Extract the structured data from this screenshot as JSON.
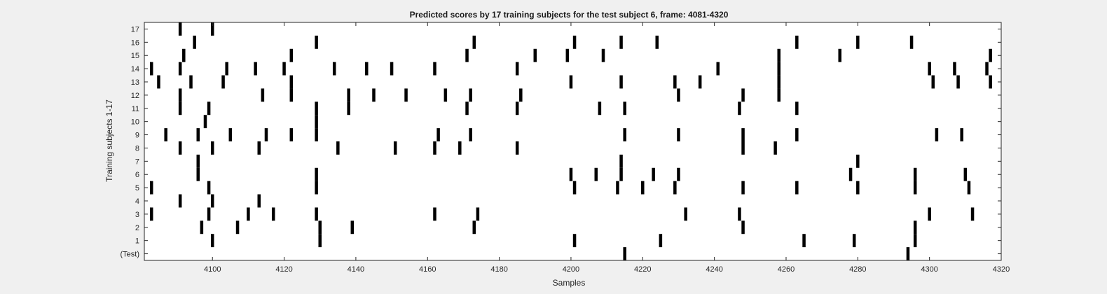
{
  "chart_data": {
    "type": "scatter",
    "title": "Predicted scores by 17 training subjects for the test subject 6, frame: 4081-4320",
    "xlabel": "Samples",
    "ylabel": "Training subjects 1-17",
    "xlim": [
      4081,
      4320
    ],
    "ylim": [
      -0.5,
      17.5
    ],
    "grid": false,
    "legend": "none",
    "x_ticks": [
      4100,
      4120,
      4140,
      4160,
      4180,
      4200,
      4220,
      4240,
      4260,
      4280,
      4300,
      4320
    ],
    "y_ticks": [
      {
        "value": 17,
        "label": "17"
      },
      {
        "value": 16,
        "label": "16"
      },
      {
        "value": 15,
        "label": "15"
      },
      {
        "value": 14,
        "label": "14"
      },
      {
        "value": 13,
        "label": "13"
      },
      {
        "value": 12,
        "label": "12"
      },
      {
        "value": 11,
        "label": "11"
      },
      {
        "value": 10,
        "label": "10"
      },
      {
        "value": 9,
        "label": "9"
      },
      {
        "value": 8,
        "label": "8"
      },
      {
        "value": 7,
        "label": "7"
      },
      {
        "value": 6,
        "label": "6"
      },
      {
        "value": 5,
        "label": "5"
      },
      {
        "value": 4,
        "label": "4"
      },
      {
        "value": 3,
        "label": "3"
      },
      {
        "value": 2,
        "label": "2"
      },
      {
        "value": 1,
        "label": "1"
      },
      {
        "value": 0,
        "label": "(Test)"
      }
    ],
    "rows": [
      {
        "row": 17,
        "x": [
          4091,
          4100
        ]
      },
      {
        "row": 16,
        "x": [
          4095,
          4129,
          4173,
          4201,
          4214,
          4224,
          4263,
          4280,
          4295
        ]
      },
      {
        "row": 15,
        "x": [
          4092,
          4122,
          4171,
          4190,
          4199,
          4209,
          4258,
          4275,
          4317
        ]
      },
      {
        "row": 14,
        "x": [
          4083,
          4091,
          4104,
          4112,
          4120,
          4134,
          4143,
          4150,
          4162,
          4185,
          4241,
          4258,
          4300,
          4307,
          4316
        ]
      },
      {
        "row": 13,
        "x": [
          4085,
          4094,
          4103,
          4122,
          4200,
          4214,
          4229,
          4236,
          4258,
          4301,
          4308,
          4317
        ]
      },
      {
        "row": 12,
        "x": [
          4091,
          4114,
          4122,
          4138,
          4145,
          4154,
          4165,
          4172,
          4186,
          4230,
          4248,
          4258
        ]
      },
      {
        "row": 11,
        "x": [
          4091,
          4099,
          4129,
          4138,
          4171,
          4185,
          4208,
          4215,
          4247,
          4263
        ]
      },
      {
        "row": 10,
        "x": [
          4098,
          4129
        ]
      },
      {
        "row": 9,
        "x": [
          4087,
          4096,
          4105,
          4115,
          4122,
          4129,
          4163,
          4172,
          4215,
          4230,
          4248,
          4263,
          4302,
          4309
        ]
      },
      {
        "row": 8,
        "x": [
          4091,
          4100,
          4113,
          4135,
          4151,
          4162,
          4169,
          4185,
          4248,
          4257
        ]
      },
      {
        "row": 7,
        "x": [
          4096,
          4214,
          4280
        ]
      },
      {
        "row": 6,
        "x": [
          4096,
          4129,
          4200,
          4207,
          4214,
          4223,
          4230,
          4278,
          4296,
          4310
        ]
      },
      {
        "row": 5,
        "x": [
          4083,
          4099,
          4129,
          4201,
          4213,
          4220,
          4229,
          4248,
          4263,
          4280,
          4296,
          4311
        ]
      },
      {
        "row": 4,
        "x": [
          4091,
          4100,
          4113
        ]
      },
      {
        "row": 3,
        "x": [
          4083,
          4099,
          4110,
          4117,
          4129,
          4162,
          4174,
          4232,
          4247,
          4300,
          4312
        ]
      },
      {
        "row": 2,
        "x": [
          4097,
          4107,
          4130,
          4139,
          4173,
          4248,
          4296
        ]
      },
      {
        "row": 1,
        "x": [
          4100,
          4130,
          4201,
          4225,
          4265,
          4279,
          4296
        ]
      },
      {
        "row": 0,
        "x": [
          4215,
          4294
        ]
      }
    ]
  }
}
